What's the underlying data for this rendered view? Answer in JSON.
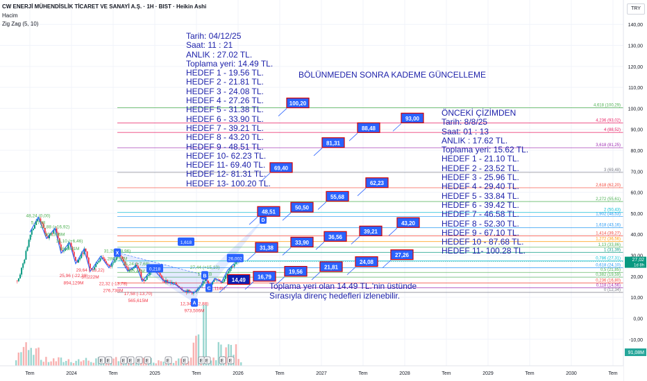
{
  "header": {
    "title": "CW ENERJİ MÜHENDİSLİK TİCARET VE SANAYİ A.Ş. · 1H · BIST · Heikin Ashi",
    "volume_label": "Hacim",
    "indicator": "Zig Zag (5, 10)",
    "currency": "TRY"
  },
  "annotations": {
    "current": [
      "Tarih:    04/12/25",
      "Saat:     11 : 21",
      "ANLIK :  27.02 TL.",
      "Toplama yeri: 14.49 TL.",
      "HEDEF  1 - 19.56 TL.",
      "HEDEF  2 - 21.81 TL.",
      "HEDEF  3 - 24.08 TL.",
      "HEDEF  4 - 27.26 TL.",
      "HEDEF  5 - 31.38 TL.",
      "HEDEF  6 - 33.90 TL.",
      "HEDEF  7 - 39.21 TL.",
      "HEDEF  8 - 43.20 TL.",
      "HEDEF  9 - 48.51 TL.",
      "HEDEF 10- 62.23 TL.",
      "HEDEF 11- 69.40 TL.",
      "HEDEF 12- 81.31 TL.",
      "HEDEF 13- 100.20 TL."
    ],
    "heading": "BÖLÜNMEDEN SONRA KADEME GÜNCELLEME",
    "previous": [
      "ÖNCEKİ ÇİZİMDEN",
      "Tarih:    8/8/25",
      "Saat:     01 : 13",
      "ANLIK :  17.62 TL.",
      "Toplama yeri: 15.62 TL.",
      "HEDEF  1 - 21.10 TL.",
      "HEDEF  2 - 23.52 TL.",
      "HEDEF  3 - 25.96 TL.",
      "HEDEF  4 - 29.40 TL.",
      "HEDEF  5 - 33.84 TL.",
      "HEDEF  6 - 39.42 TL.",
      "HEDEF  7 - 46.58 TL.",
      "HEDEF  8 - 52.30 TL.",
      "HEDEF  9 - 67.10 TL.",
      "HEDEF 10 - 87.68 TL.",
      "HEDEF 11- 100.28 TL."
    ],
    "note": [
      "Toplama yeri olan 14.49 TL.'nin üstünde",
      "Sırasıyla direnç hedefleri izlenebilir."
    ]
  },
  "chart_data": {
    "type": "candlestick",
    "y_axis": {
      "min": -18,
      "max": 147,
      "ticks": [
        140,
        130,
        120,
        110,
        100,
        90,
        80,
        70,
        60,
        50,
        40,
        30,
        20,
        10,
        0,
        -10
      ],
      "labels": [
        "140,00",
        "130,00",
        "120,00",
        "110,00",
        "100,00",
        "90,00",
        "80,00",
        "70,00",
        "60,00",
        "50,00",
        "40,00",
        "30,00",
        "20,00",
        "10,00",
        "0,00",
        "-10,00"
      ]
    },
    "x_axis": {
      "labels": [
        {
          "t": "Tem",
          "x": 0
        },
        {
          "t": "2024",
          "x": 1
        },
        {
          "t": "Tem",
          "x": 2
        },
        {
          "t": "2025",
          "x": 3
        },
        {
          "t": "Tem",
          "x": 4
        },
        {
          "t": "2026",
          "x": 5
        },
        {
          "t": "Tem",
          "x": 6
        },
        {
          "t": "2027",
          "x": 7
        },
        {
          "t": "Tem",
          "x": 8
        },
        {
          "t": "2028",
          "x": 9
        },
        {
          "t": "Tem",
          "x": 10
        },
        {
          "t": "2029",
          "x": 11
        },
        {
          "t": "Tem",
          "x": 12
        },
        {
          "t": "2030",
          "x": 13
        },
        {
          "t": "Tem",
          "x": 14
        }
      ]
    },
    "price_path": [
      [
        -0.3,
        18
      ],
      [
        -0.15,
        28
      ],
      [
        0,
        41
      ],
      [
        0.2,
        48.2
      ],
      [
        0.4,
        38
      ],
      [
        0.6,
        42.9
      ],
      [
        0.75,
        31
      ],
      [
        0.95,
        36.1
      ],
      [
        1.1,
        26
      ],
      [
        1.3,
        33
      ],
      [
        1.45,
        22.3
      ],
      [
        1.7,
        29.6
      ],
      [
        1.9,
        24
      ],
      [
        2.1,
        31.3
      ],
      [
        2.35,
        22.4
      ],
      [
        2.55,
        25.2
      ],
      [
        2.7,
        17.6
      ],
      [
        2.95,
        24
      ],
      [
        3.2,
        18
      ],
      [
        3.5,
        16
      ],
      [
        3.7,
        13
      ],
      [
        3.95,
        12.3
      ],
      [
        4.1,
        15
      ],
      [
        4.2,
        20
      ],
      [
        4.3,
        15.2
      ],
      [
        4.45,
        19
      ],
      [
        4.6,
        17.2
      ],
      [
        4.75,
        23
      ],
      [
        4.9,
        26
      ],
      [
        5.02,
        27.02
      ]
    ],
    "current_price": {
      "value": 27.02,
      "label": "27,02",
      "sub": "1d 8h"
    },
    "volume_badge": "91,08M",
    "fib_levels": [
      {
        "label": "4,618 (100,29)",
        "value": 100.29,
        "color": "#4caf50"
      },
      {
        "label": "4,236 (93,02)",
        "value": 93.02,
        "color": "#e91e63"
      },
      {
        "label": "4 (88,52)",
        "value": 88.52,
        "color": "#e91e63"
      },
      {
        "label": "3,618 (81,25)",
        "value": 81.25,
        "color": "#9c27b0"
      },
      {
        "label": "3 (69,48)",
        "value": 69.48,
        "color": "#787b86"
      },
      {
        "label": "2,618 (62,20)",
        "value": 62.2,
        "color": "#f44336"
      },
      {
        "label": "2,272 (55,61)",
        "value": 55.61,
        "color": "#4caf50"
      },
      {
        "label": "1,902 (48,53)",
        "value": 48.53,
        "color": "#2196f3"
      },
      {
        "label": "2 (50,43)",
        "value": 50.43,
        "color": "#00bcd4"
      },
      {
        "label": "1,618 (43,16)",
        "value": 43.16,
        "color": "#2196f3"
      },
      {
        "label": "1,414 (39,27)",
        "value": 39.27,
        "color": "#f44336"
      },
      {
        "label": "1,272 (36,56)",
        "value": 36.56,
        "color": "#ff9800"
      },
      {
        "label": "1,13 (33,86)",
        "value": 33.86,
        "color": "#4caf50"
      },
      {
        "label": "1 (31,39)",
        "value": 31.39,
        "color": "#089981"
      },
      {
        "label": "0,786 (27,31)",
        "value": 27.31,
        "color": "#00bcd4"
      },
      {
        "label": "0,618 (24,10)",
        "value": 24.1,
        "color": "#2196f3"
      },
      {
        "label": "0,5 (21,85)",
        "value": 21.85,
        "color": "#4caf50"
      },
      {
        "label": "0,382 (19,59)",
        "value": 19.59,
        "color": "#4caf50"
      },
      {
        "label": "0,236 (16,80)",
        "value": 16.8,
        "color": "#f44336"
      },
      {
        "label": "0,118 (14,56)",
        "value": 14.56,
        "color": "#9c27b0"
      },
      {
        "label": "0 (12,34)",
        "value": 12.34,
        "color": "#787b86"
      }
    ],
    "zigzag_labels": [
      {
        "t": "48,24 (0,00)",
        "x": 0.2,
        "y": 48.24,
        "c": "#4caf50",
        "above": true
      },
      {
        "t": "5,273B",
        "x": 0.2,
        "y": 44.8,
        "c": "#4caf50",
        "above": true
      },
      {
        "t": "42,88 (+16,92)",
        "x": 0.6,
        "y": 42.88,
        "c": "#4caf50",
        "above": true
      },
      {
        "t": "508,386M",
        "x": 0.6,
        "y": 39.3,
        "c": "#4caf50",
        "above": true
      },
      {
        "t": "36,10 (+6,46)",
        "x": 0.95,
        "y": 36.1,
        "c": "#4caf50",
        "above": true
      },
      {
        "t": "161,631M",
        "x": 0.95,
        "y": 32.5,
        "c": "#4caf50",
        "above": true
      },
      {
        "t": "31,28 (+8,96)",
        "x": 2.1,
        "y": 31.28,
        "c": "#4caf50",
        "above": true
      },
      {
        "t": "286,792M",
        "x": 2.1,
        "y": 27.7,
        "c": "#4caf50",
        "above": true
      },
      {
        "t": "25,24 (+7,68)",
        "x": 2.55,
        "y": 25.24,
        "c": "#4caf50",
        "above": true
      },
      {
        "t": "385,47M",
        "x": 2.55,
        "y": 21.7,
        "c": "#4caf50",
        "above": true
      },
      {
        "t": "27,44 (+15,10)",
        "x": 4.2,
        "y": 23.5,
        "c": "#4caf50",
        "above": true
      },
      {
        "t": "1,741B",
        "x": 4.2,
        "y": 20.2,
        "c": "#4caf50",
        "above": true
      },
      {
        "t": "29,64 (-13,22)",
        "x": 1.45,
        "y": 22.3,
        "c": "#f23645",
        "above": false
      },
      {
        "t": "25,96 (-22,28)",
        "x": 1.05,
        "y": 19.6,
        "c": "#f23645",
        "above": false
      },
      {
        "t": "37,222M",
        "x": 1.45,
        "y": 18.9,
        "c": "#f23645",
        "above": false
      },
      {
        "t": "894,129M",
        "x": 1.05,
        "y": 16.2,
        "c": "#f23645",
        "above": false
      },
      {
        "t": "22,32 (-13,78)",
        "x": 2.0,
        "y": 15.9,
        "c": "#f23645",
        "above": false
      },
      {
        "t": "276,738M",
        "x": 2.0,
        "y": 12.6,
        "c": "#f23645",
        "above": false
      },
      {
        "t": "17,58 (-13,70)",
        "x": 2.6,
        "y": 11.1,
        "c": "#f23645",
        "above": false
      },
      {
        "t": "565,615M",
        "x": 2.6,
        "y": 7.7,
        "c": "#f23645",
        "above": false
      },
      {
        "t": "12,34 (-12,88)",
        "x": 3.95,
        "y": 6.3,
        "c": "#f23645",
        "above": false
      },
      {
        "t": "973,506M",
        "x": 3.95,
        "y": 2.9,
        "c": "#f23645",
        "above": false
      },
      {
        "t": "731,114M",
        "x": 4.45,
        "y": 13.5,
        "c": "#f23645",
        "above": false
      }
    ],
    "wave_points": [
      {
        "t": "X",
        "x": 2.1,
        "y": 31.3
      },
      {
        "t": "A",
        "x": 3.95,
        "y": 7.5
      },
      {
        "t": "B",
        "x": 4.2,
        "y": 20.5
      },
      {
        "t": "C",
        "x": 4.3,
        "y": 14.5
      },
      {
        "t": "D",
        "x": 5.6,
        "y": 47.0
      }
    ],
    "ratio_boxes": [
      {
        "t": "1,618",
        "x": 3.75,
        "y": 36.5
      },
      {
        "t": "0,218",
        "x": 3.0,
        "y": 23.8
      },
      {
        "t": "26,002",
        "x": 4.93,
        "y": 28.7
      }
    ],
    "callouts": [
      {
        "t": "14,49",
        "x": 4.98,
        "y": 18.5,
        "dark": true
      },
      {
        "t": "16,79",
        "x": 5.6,
        "y": 20.0,
        "dark": false
      },
      {
        "t": "19,56",
        "x": 6.35,
        "y": 22.4,
        "dark": false
      },
      {
        "t": "21,81",
        "x": 7.2,
        "y": 24.6,
        "dark": false
      },
      {
        "t": "24,08",
        "x": 8.05,
        "y": 27.0,
        "dark": false
      },
      {
        "t": "27,26",
        "x": 8.9,
        "y": 30.3,
        "dark": false
      },
      {
        "t": "31,38",
        "x": 5.65,
        "y": 33.8,
        "dark": false
      },
      {
        "t": "33,90",
        "x": 6.5,
        "y": 36.3,
        "dark": false
      },
      {
        "t": "36,56",
        "x": 7.3,
        "y": 39.0,
        "dark": false
      },
      {
        "t": "39,21",
        "x": 8.15,
        "y": 41.6,
        "dark": false
      },
      {
        "t": "43,20",
        "x": 9.05,
        "y": 45.6,
        "dark": false
      },
      {
        "t": "48,51",
        "x": 5.7,
        "y": 50.9,
        "dark": false
      },
      {
        "t": "50,50",
        "x": 6.5,
        "y": 52.9,
        "dark": false
      },
      {
        "t": "55,68",
        "x": 7.35,
        "y": 58.1,
        "dark": false
      },
      {
        "t": "62,23",
        "x": 8.3,
        "y": 64.6,
        "dark": false
      },
      {
        "t": "69,40",
        "x": 6.0,
        "y": 71.8,
        "dark": false
      },
      {
        "t": "81,31",
        "x": 7.25,
        "y": 83.7,
        "dark": false
      },
      {
        "t": "88,48",
        "x": 8.1,
        "y": 90.8,
        "dark": false
      },
      {
        "t": "93,00",
        "x": 9.15,
        "y": 95.4,
        "dark": false
      },
      {
        "t": "100,20",
        "x": 6.4,
        "y": 102.6,
        "dark": false
      }
    ],
    "event_markers": [
      "E",
      "E",
      "E",
      "E",
      "E",
      "E",
      "E",
      "E",
      "E",
      "E",
      "E",
      "E"
    ]
  }
}
